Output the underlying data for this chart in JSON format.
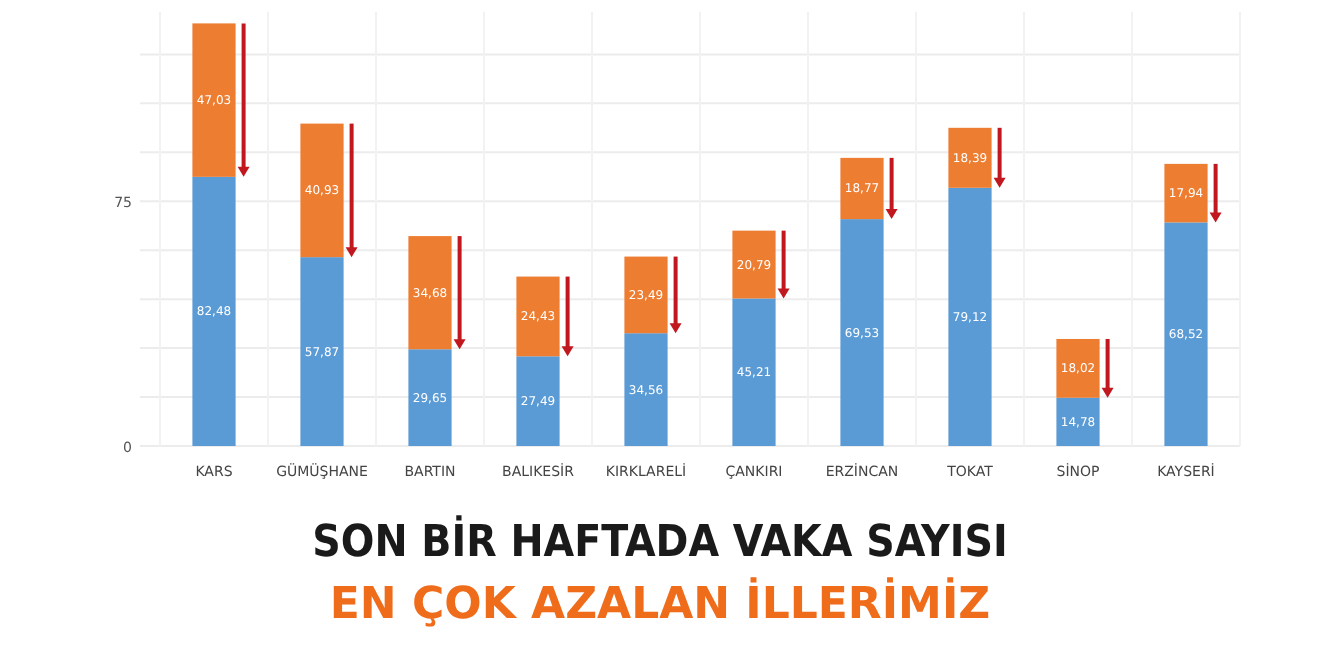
{
  "chart_data": {
    "type": "bar",
    "stacked": true,
    "title": "SON BİR HAFTADA VAKA SAYISI",
    "subtitle": "EN ÇOK AZALAN İLLERİMİZ",
    "categories": [
      "KARS",
      "GÜMÜŞHANE",
      "BARTIN",
      "BALIKESİR",
      "KIRKLARELİ",
      "ÇANKIRI",
      "ERZİNCAN",
      "TOKAT",
      "SİNOP",
      "KAYSERİ"
    ],
    "series": [
      {
        "color": "#5b9bd5",
        "values": [
          82.48,
          57.87,
          29.65,
          27.49,
          34.56,
          45.21,
          69.53,
          79.12,
          14.78,
          68.52
        ],
        "value_labels": [
          "82,48",
          "57,87",
          "29,65",
          "27,49",
          "34,56",
          "45,21",
          "69,53",
          "79,12",
          "14,78",
          "68,52"
        ]
      },
      {
        "color": "#ed7d31",
        "values": [
          47.03,
          40.93,
          34.68,
          24.43,
          23.49,
          20.79,
          18.77,
          18.39,
          18.02,
          17.94
        ],
        "value_labels": [
          "47,03",
          "40,93",
          "34,68",
          "24,43",
          "23,49",
          "20,79",
          "18,77",
          "18,39",
          "18,02",
          "17,94"
        ]
      }
    ],
    "ylim": [
      0,
      133
    ],
    "yticks": [
      0,
      {
        "value": 15,
        "label": null
      },
      {
        "value": 30,
        "label": null
      },
      {
        "value": 45,
        "label": null
      },
      {
        "value": 60,
        "label": null
      },
      75,
      {
        "value": 90,
        "label": null
      },
      {
        "value": 105,
        "label": null
      },
      {
        "value": 120,
        "label": null
      }
    ],
    "grid": true
  }
}
